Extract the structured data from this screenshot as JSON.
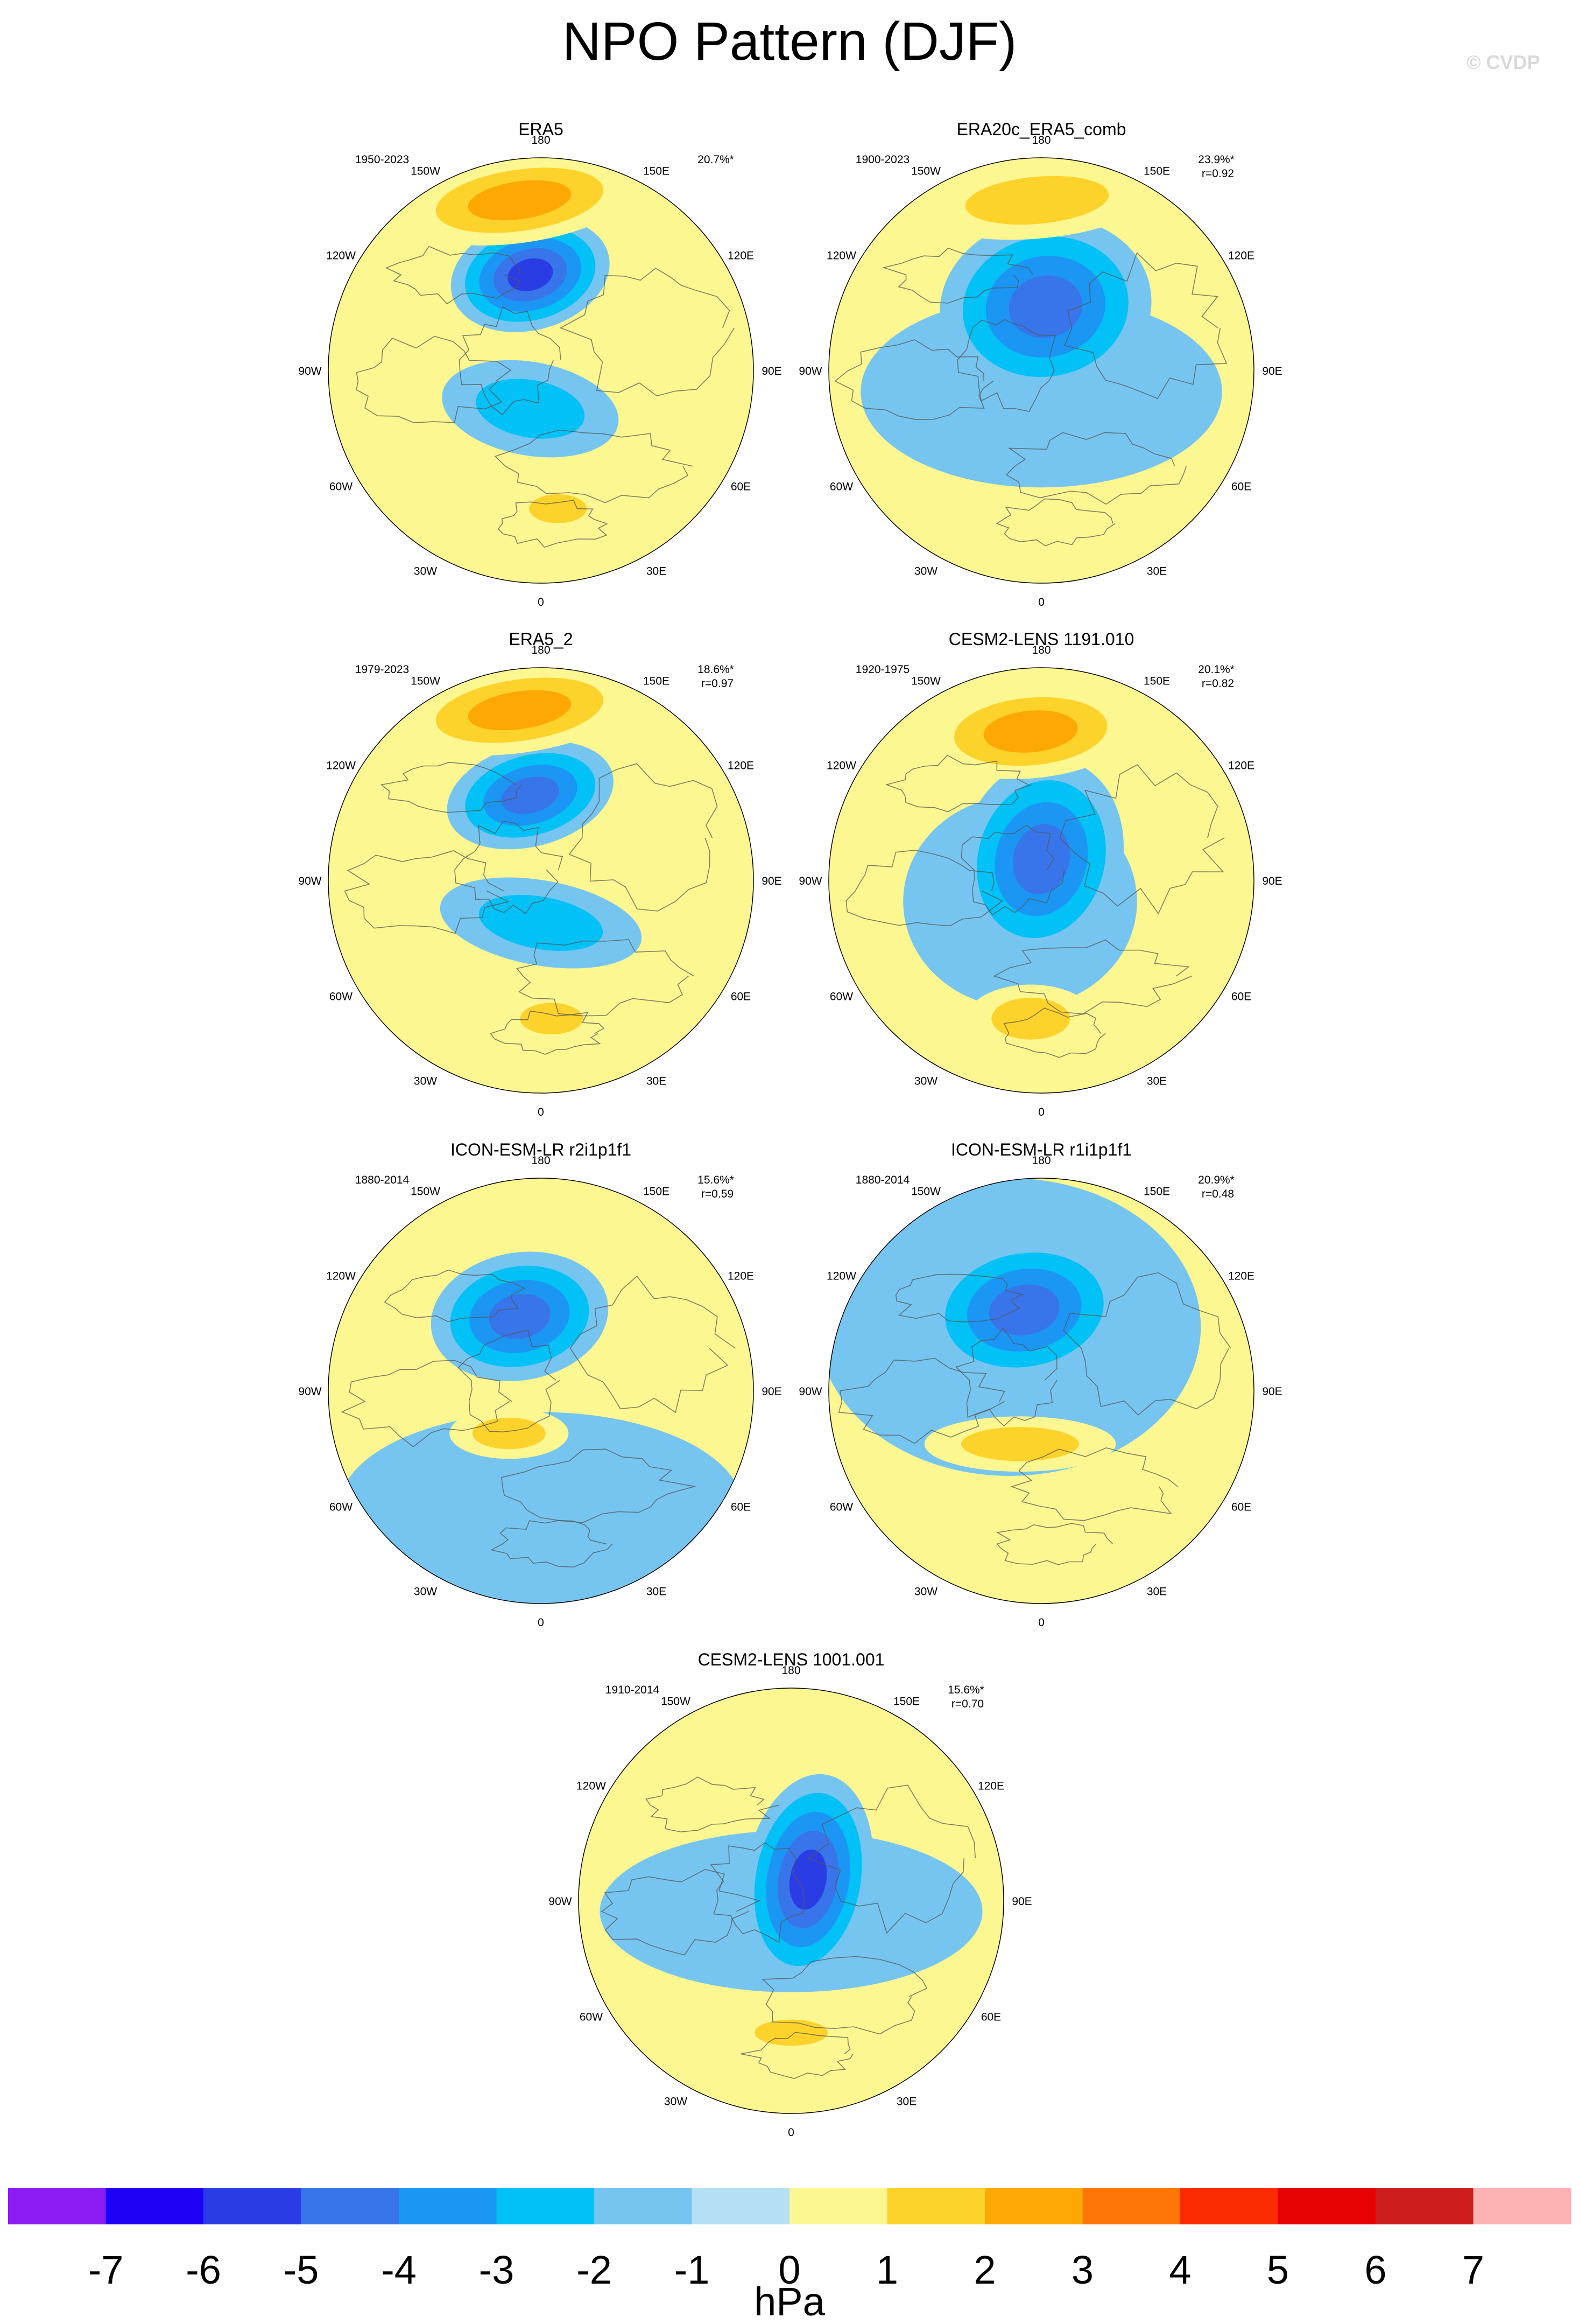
{
  "title": "NPO Pattern (DJF)",
  "watermark": "© CVDP",
  "lon_labels": [
    "180",
    "150E",
    "120E",
    "90E",
    "60E",
    "30E",
    "0",
    "30W",
    "60W",
    "90W",
    "120W",
    "150W"
  ],
  "panels": [
    {
      "name": "ERA5",
      "years": "1950-2023",
      "pct": "20.7%*",
      "r": "",
      "low": {
        "dx": -0.05,
        "dy": -0.45,
        "rx": 0.38,
        "ry": 0.26,
        "rot": -15,
        "min": -5
      },
      "low2": {
        "dx": -0.05,
        "dy": 0.18,
        "rx": 0.42,
        "ry": 0.22,
        "rot": 10,
        "min": -2
      },
      "high": {
        "dx": -0.1,
        "dy": -0.8,
        "rx": 0.55,
        "ry": 0.2,
        "rot": -8,
        "max": 3
      },
      "high2": {
        "dx": 0.08,
        "dy": 0.65,
        "rx": 0.22,
        "ry": 0.11,
        "rot": 0,
        "max": 2
      }
    },
    {
      "name": "ERA20c_ERA5_comb",
      "years": "1900-2023",
      "pct": "23.9%*",
      "r": "r=0.92",
      "low": {
        "dx": 0.02,
        "dy": -0.3,
        "rx": 0.5,
        "ry": 0.42,
        "rot": -10,
        "min": -4
      },
      "low2": {
        "dx": 0.0,
        "dy": 0.1,
        "rx": 0.85,
        "ry": 0.45,
        "rot": 0,
        "min": -1
      },
      "high": {
        "dx": -0.02,
        "dy": -0.8,
        "rx": 0.55,
        "ry": 0.18,
        "rot": -5,
        "max": 2
      },
      "high2": null
    },
    {
      "name": "ERA5_2",
      "years": "1979-2023",
      "pct": "18.6%*",
      "r": "r=0.97",
      "low": {
        "dx": -0.05,
        "dy": -0.4,
        "rx": 0.4,
        "ry": 0.24,
        "rot": -15,
        "min": -4
      },
      "low2": {
        "dx": 0.0,
        "dy": 0.2,
        "rx": 0.48,
        "ry": 0.2,
        "rot": 10,
        "min": -2
      },
      "high": {
        "dx": -0.1,
        "dy": -0.8,
        "rx": 0.55,
        "ry": 0.2,
        "rot": -8,
        "max": 3
      },
      "high2": {
        "dx": 0.05,
        "dy": 0.65,
        "rx": 0.24,
        "ry": 0.12,
        "rot": 0,
        "max": 2
      }
    },
    {
      "name": "CESM2-LENS 1191.010",
      "years": "1920-1975",
      "pct": "20.1%*",
      "r": "r=0.82",
      "low": {
        "dx": 0.0,
        "dy": -0.1,
        "rx": 0.38,
        "ry": 0.48,
        "rot": 15,
        "min": -4
      },
      "low2": {
        "dx": -0.1,
        "dy": 0.1,
        "rx": 0.55,
        "ry": 0.5,
        "rot": 0,
        "min": -1
      },
      "high": {
        "dx": -0.05,
        "dy": -0.7,
        "rx": 0.5,
        "ry": 0.22,
        "rot": -5,
        "max": 3
      },
      "high2": {
        "dx": -0.05,
        "dy": 0.65,
        "rx": 0.3,
        "ry": 0.16,
        "rot": 0,
        "max": 2
      }
    },
    {
      "name": "ICON-ESM-LR r2i1p1f1",
      "years": "1880-2014",
      "pct": "15.6%*",
      "r": "r=0.59",
      "low": {
        "dx": -0.1,
        "dy": -0.35,
        "rx": 0.42,
        "ry": 0.3,
        "rot": -10,
        "min": -4
      },
      "low2": {
        "dx": 0.0,
        "dy": 0.55,
        "rx": 0.95,
        "ry": 0.45,
        "rot": 0,
        "min": -1
      },
      "high": {
        "dx": -0.15,
        "dy": 0.2,
        "rx": 0.28,
        "ry": 0.12,
        "rot": 0,
        "max": 2
      },
      "high2": null
    },
    {
      "name": "ICON-ESM-LR r1i1p1f1",
      "years": "1880-2014",
      "pct": "20.9%*",
      "r": "r=0.48",
      "low": {
        "dx": -0.08,
        "dy": -0.38,
        "rx": 0.48,
        "ry": 0.34,
        "rot": -10,
        "min": -4
      },
      "low2": {
        "dx": -0.15,
        "dy": -0.3,
        "rx": 0.9,
        "ry": 0.7,
        "rot": 0,
        "min": -1
      },
      "high": {
        "dx": -0.1,
        "dy": 0.25,
        "rx": 0.45,
        "ry": 0.13,
        "rot": 0,
        "max": 2
      },
      "high2": null
    },
    {
      "name": "CESM2-LENS 1001.001",
      "years": "1910-2014",
      "pct": "15.6%*",
      "r": "r=0.70",
      "low": {
        "dx": 0.08,
        "dy": -0.1,
        "rx": 0.3,
        "ry": 0.5,
        "rot": 10,
        "min": -5
      },
      "low2": {
        "dx": 0.0,
        "dy": 0.05,
        "rx": 0.9,
        "ry": 0.38,
        "rot": 0,
        "min": -1
      },
      "high": {
        "dx": 0.0,
        "dy": 0.62,
        "rx": 0.28,
        "ry": 0.1,
        "rot": 0,
        "max": 2
      },
      "high2": null
    }
  ],
  "colorbar": {
    "unit": "hPa",
    "ticks": [
      "-7",
      "-6",
      "-5",
      "-4",
      "-3",
      "-2",
      "-1",
      "0",
      "1",
      "2",
      "3",
      "4",
      "5",
      "6",
      "7"
    ],
    "colors": [
      "#8a1cf3",
      "#1e02f6",
      "#2a3de5",
      "#3875ea",
      "#1c96f5",
      "#01c1f6",
      "#76c5f0",
      "#b4dff4",
      "#fdf791",
      "#fdd22a",
      "#fda804",
      "#fd7605",
      "#fc2a01",
      "#e60202",
      "#cd1d1c",
      "#fdb3b3"
    ]
  }
}
